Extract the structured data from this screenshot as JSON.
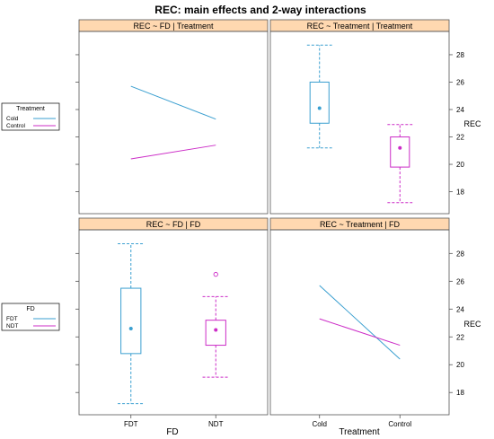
{
  "title": "REC: main effects and 2-way interactions",
  "colors": {
    "blue": "#3a9fd0",
    "magenta": "#cc2cc7",
    "strip": "#ffd8b0",
    "frame": "#555555"
  },
  "y_ticks": [
    18,
    20,
    22,
    24,
    26,
    28
  ],
  "y_range": [
    16.4,
    29.7
  ],
  "legends": {
    "top": {
      "title": "Treatment",
      "items": [
        {
          "label": "Cold",
          "color": "#3a9fd0"
        },
        {
          "label": "Control",
          "color": "#cc2cc7"
        }
      ]
    },
    "bottom": {
      "title": "FD",
      "items": [
        {
          "label": "FDT",
          "color": "#3a9fd0"
        },
        {
          "label": "NDT",
          "color": "#cc2cc7"
        }
      ]
    }
  },
  "axes": {
    "ylabel": "REC",
    "bottom_left_xlabel": "FD",
    "bottom_right_xlabel": "Treatment",
    "bottom_left_ticks": [
      "FDT",
      "NDT"
    ],
    "bottom_right_ticks": [
      "Cold",
      "Control"
    ]
  },
  "chart_data": [
    {
      "type": "line",
      "strip": "REC ~ FD | Treatment",
      "x": [
        "FDT",
        "NDT"
      ],
      "series": [
        {
          "name": "Cold",
          "color": "#3a9fd0",
          "values": [
            25.7,
            23.3
          ]
        },
        {
          "name": "Control",
          "color": "#cc2cc7",
          "values": [
            20.4,
            21.4
          ]
        }
      ],
      "ylim": [
        16.4,
        29.7
      ]
    },
    {
      "type": "box",
      "strip": "REC ~ Treatment | Treatment",
      "categories": [
        "Cold",
        "Control"
      ],
      "boxes": [
        {
          "name": "Cold",
          "color": "#3a9fd0",
          "whisker_low": 21.2,
          "q1": 23.0,
          "mean": 24.1,
          "q3": 26.0,
          "whisker_high": 28.7,
          "outliers": []
        },
        {
          "name": "Control",
          "color": "#cc2cc7",
          "whisker_low": 17.2,
          "q1": 19.8,
          "mean": 21.2,
          "q3": 22.0,
          "whisker_high": 22.9,
          "outliers": []
        }
      ],
      "ylim": [
        16.4,
        29.7
      ]
    },
    {
      "type": "box",
      "strip": "REC ~ FD | FD",
      "categories": [
        "FDT",
        "NDT"
      ],
      "boxes": [
        {
          "name": "FDT",
          "color": "#3a9fd0",
          "whisker_low": 17.2,
          "q1": 20.8,
          "mean": 22.6,
          "q3": 25.5,
          "whisker_high": 28.7,
          "outliers": []
        },
        {
          "name": "NDT",
          "color": "#cc2cc7",
          "whisker_low": 19.1,
          "q1": 21.4,
          "mean": 22.5,
          "q3": 23.2,
          "whisker_high": 24.9,
          "outliers": [
            26.5
          ]
        }
      ],
      "ylim": [
        16.4,
        29.7
      ]
    },
    {
      "type": "line",
      "strip": "REC ~ Treatment | FD",
      "x": [
        "Cold",
        "Control"
      ],
      "series": [
        {
          "name": "FDT",
          "color": "#3a9fd0",
          "values": [
            25.7,
            20.4
          ]
        },
        {
          "name": "NDT",
          "color": "#cc2cc7",
          "values": [
            23.3,
            21.4
          ]
        }
      ],
      "ylim": [
        16.4,
        29.7
      ]
    }
  ]
}
